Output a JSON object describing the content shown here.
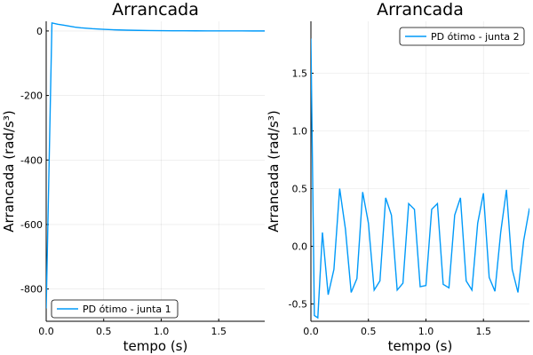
{
  "chart_data": [
    {
      "type": "line",
      "title": "Arrancada",
      "xlabel": "tempo (s)",
      "ylabel": "Arrancada (rad/s³)",
      "xlim": [
        0,
        1.9
      ],
      "ylim": [
        -900,
        30
      ],
      "xticks": [
        0.0,
        0.5,
        1.0,
        1.5
      ],
      "xtick_labels": [
        "0.0",
        "0.5",
        "1.0",
        "1.5"
      ],
      "yticks": [
        -800,
        -600,
        -400,
        -200,
        0
      ],
      "ytick_labels": [
        "-800",
        "-600",
        "-400",
        "-200",
        "0"
      ],
      "grid": true,
      "legend_position": "bottom-right",
      "series": [
        {
          "name": "PD ótimo - junta 1",
          "color": "#009af9",
          "x": [
            0,
            0.05,
            0.1,
            0.15,
            0.2,
            0.25,
            0.3,
            0.4,
            0.5,
            0.6,
            0.7,
            0.8,
            0.9,
            1.0,
            1.1,
            1.2,
            1.3,
            1.4,
            1.5,
            1.6,
            1.7,
            1.8,
            1.9
          ],
          "y": [
            -860,
            25,
            21,
            18,
            15,
            12,
            10,
            7,
            5,
            3.5,
            2.5,
            1.8,
            1.2,
            0.9,
            0.7,
            0.5,
            0.4,
            0.3,
            0.25,
            0.2,
            0.15,
            0.1,
            0.1
          ]
        }
      ]
    },
    {
      "type": "line",
      "title": "Arrancada",
      "xlabel": "tempo (s)",
      "ylabel": "Arrancada (rad/s³)",
      "xlim": [
        0,
        1.9
      ],
      "ylim": [
        -0.65,
        1.95
      ],
      "xticks": [
        0.0,
        0.5,
        1.0,
        1.5
      ],
      "xtick_labels": [
        "0.0",
        "0.5",
        "1.0",
        "1.5"
      ],
      "yticks": [
        -0.5,
        0.0,
        0.5,
        1.0,
        1.5
      ],
      "ytick_labels": [
        "-0.5",
        "0.0",
        "0.5",
        "1.0",
        "1.5"
      ],
      "grid": true,
      "legend_position": "top-right",
      "series": [
        {
          "name": "PD ótimo - junta 2",
          "color": "#009af9",
          "x": [
            0,
            0.03,
            0.06,
            0.1,
            0.15,
            0.2,
            0.25,
            0.3,
            0.35,
            0.4,
            0.45,
            0.5,
            0.55,
            0.6,
            0.65,
            0.7,
            0.75,
            0.8,
            0.85,
            0.9,
            0.95,
            1.0,
            1.05,
            1.1,
            1.15,
            1.2,
            1.25,
            1.3,
            1.35,
            1.4,
            1.45,
            1.5,
            1.55,
            1.6,
            1.65,
            1.7,
            1.75,
            1.8,
            1.85,
            1.9
          ],
          "y": [
            1.8,
            -0.6,
            -0.62,
            0.12,
            -0.42,
            -0.2,
            0.5,
            0.15,
            -0.4,
            -0.28,
            0.47,
            0.2,
            -0.38,
            -0.3,
            0.42,
            0.27,
            -0.38,
            -0.32,
            0.37,
            0.32,
            -0.35,
            -0.34,
            0.32,
            0.37,
            -0.33,
            -0.36,
            0.27,
            0.42,
            -0.3,
            -0.38,
            0.2,
            0.46,
            -0.27,
            -0.39,
            0.12,
            0.49,
            -0.2,
            -0.4,
            0.05,
            0.33
          ]
        }
      ]
    }
  ]
}
